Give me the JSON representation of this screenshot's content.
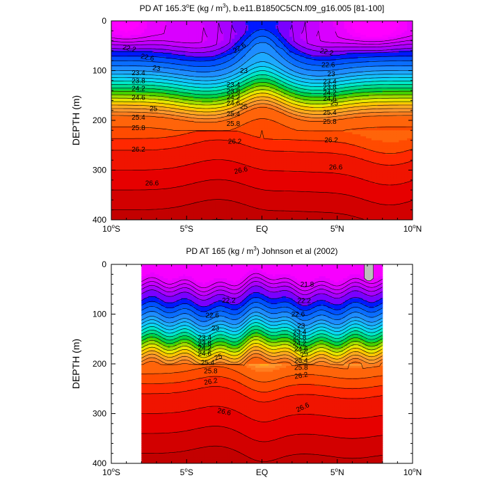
{
  "chart_data": [
    {
      "type": "contour",
      "title": "PD AT 165.3°E (kg / m³), b.e11.B1850C5CN.f09_g16.005 [81-100]",
      "title_parts": {
        "pre": "PD AT 165.3",
        "deg": "o",
        "mid": "E (kg / m",
        "sup": "3",
        "post": "), b.e11.B1850C5CN.f09_g16.005 [81-100]"
      },
      "ylabel": "DEPTH (m)",
      "xlabel": "",
      "xlim": [
        -10,
        10
      ],
      "ylim": [
        400,
        0
      ],
      "xticks": [
        {
          "v": -10,
          "num": "10",
          "deg": "o",
          "dir": "S"
        },
        {
          "v": -5,
          "num": "5",
          "deg": "o",
          "dir": "S"
        },
        {
          "v": 0,
          "num": "EQ",
          "deg": "",
          "dir": ""
        },
        {
          "v": 5,
          "num": "5",
          "deg": "o",
          "dir": "N"
        },
        {
          "v": 10,
          "num": "10",
          "deg": "o",
          "dir": "N"
        }
      ],
      "yticks": [
        0,
        100,
        200,
        300,
        400
      ],
      "data_xrange": [
        -10,
        10
      ],
      "label_values": [
        22.2,
        22.6,
        23,
        23.4,
        23.8,
        24.2,
        24.6,
        25,
        25.4,
        25.8,
        26.2,
        26.6
      ],
      "contour_labels": [
        {
          "v": 22.2,
          "x": -8.8,
          "d": 55,
          "rot": 12
        },
        {
          "v": 22.6,
          "x": -7.6,
          "d": 73,
          "rot": 12
        },
        {
          "v": 23,
          "x": -7.0,
          "d": 95,
          "rot": 10
        },
        {
          "v": 23.4,
          "x": -8.2,
          "d": 104,
          "rot": 0
        },
        {
          "v": 23.8,
          "x": -8.2,
          "d": 120,
          "rot": 0
        },
        {
          "v": 24.2,
          "x": -8.2,
          "d": 136,
          "rot": 0
        },
        {
          "v": 24.6,
          "x": -8.2,
          "d": 154,
          "rot": 0
        },
        {
          "v": 25,
          "x": -7.2,
          "d": 176,
          "rot": 0
        },
        {
          "v": 25.4,
          "x": -8.2,
          "d": 194,
          "rot": 0
        },
        {
          "v": 25.8,
          "x": -8.2,
          "d": 215,
          "rot": 0
        },
        {
          "v": 26.2,
          "x": -8.2,
          "d": 258,
          "rot": 0
        },
        {
          "v": 26.6,
          "x": -7.3,
          "d": 326,
          "rot": 0
        },
        {
          "v": 22.6,
          "x": -1.5,
          "d": 54,
          "rot": -30
        },
        {
          "v": 23,
          "x": -1.2,
          "d": 100,
          "rot": 0
        },
        {
          "v": 23.4,
          "x": -1.9,
          "d": 128,
          "rot": 0
        },
        {
          "v": 23.8,
          "x": -1.9,
          "d": 141,
          "rot": 0
        },
        {
          "v": 24.2,
          "x": -1.9,
          "d": 153,
          "rot": 0
        },
        {
          "v": 24.6,
          "x": -1.9,
          "d": 165,
          "rot": 0
        },
        {
          "v": 25,
          "x": -1.2,
          "d": 172,
          "rot": 0
        },
        {
          "v": 25.4,
          "x": -1.9,
          "d": 187,
          "rot": 0
        },
        {
          "v": 25.8,
          "x": -1.9,
          "d": 206,
          "rot": 0
        },
        {
          "v": 26.2,
          "x": -1.8,
          "d": 242,
          "rot": 0
        },
        {
          "v": 26.6,
          "x": -1.4,
          "d": 300,
          "rot": -12
        },
        {
          "v": 22.2,
          "x": 4.3,
          "d": 62,
          "rot": 12
        },
        {
          "v": 22.6,
          "x": 4.4,
          "d": 88,
          "rot": 0
        },
        {
          "v": 23,
          "x": 4.6,
          "d": 106,
          "rot": 0
        },
        {
          "v": 23.4,
          "x": 4.5,
          "d": 122,
          "rot": 0
        },
        {
          "v": 23.8,
          "x": 4.5,
          "d": 133,
          "rot": 0
        },
        {
          "v": 24.2,
          "x": 4.5,
          "d": 144,
          "rot": 0
        },
        {
          "v": 24.6,
          "x": 4.5,
          "d": 156,
          "rot": 0
        },
        {
          "v": 25,
          "x": 4.8,
          "d": 165,
          "rot": 0
        },
        {
          "v": 25.4,
          "x": 4.5,
          "d": 184,
          "rot": 0
        },
        {
          "v": 25.8,
          "x": 4.5,
          "d": 202,
          "rot": 0
        },
        {
          "v": 26.2,
          "x": 4.6,
          "d": 239,
          "rot": 0
        },
        {
          "v": 26.6,
          "x": 4.9,
          "d": 294,
          "rot": 0
        }
      ]
    },
    {
      "type": "contour",
      "title": "PD AT 165 (kg / m³) Johnson et al (2002)",
      "title_parts": {
        "pre": "PD AT 165 (kg / m",
        "deg": "",
        "mid": "",
        "sup": "3",
        "post": ") Johnson et al (2002)"
      },
      "ylabel": "DEPTH (m)",
      "xlabel": "",
      "xlim": [
        -10,
        10
      ],
      "ylim": [
        400,
        0
      ],
      "xticks": [
        {
          "v": -10,
          "num": "10",
          "deg": "o",
          "dir": "S"
        },
        {
          "v": -5,
          "num": "5",
          "deg": "o",
          "dir": "S"
        },
        {
          "v": 0,
          "num": "EQ",
          "deg": "",
          "dir": ""
        },
        {
          "v": 5,
          "num": "5",
          "deg": "o",
          "dir": "N"
        },
        {
          "v": 10,
          "num": "10",
          "deg": "o",
          "dir": "N"
        }
      ],
      "yticks": [
        0,
        100,
        200,
        300,
        400
      ],
      "data_xrange": [
        -8,
        8
      ],
      "label_values": [
        21.8,
        22.2,
        22.6,
        23,
        23.4,
        23.8,
        24.2,
        24.6,
        25,
        25.4,
        25.8,
        26.2,
        26.6
      ],
      "contour_labels": [
        {
          "v": 21.8,
          "x": 3.0,
          "d": 40,
          "rot": 0
        },
        {
          "v": 22.2,
          "x": -2.2,
          "d": 72,
          "rot": 0
        },
        {
          "v": 22.6,
          "x": -3.3,
          "d": 102,
          "rot": 0
        },
        {
          "v": 23,
          "x": -3.1,
          "d": 128,
          "rot": 0
        },
        {
          "v": 23.4,
          "x": -3.8,
          "d": 147,
          "rot": 0
        },
        {
          "v": 23.8,
          "x": -3.8,
          "d": 158,
          "rot": 0
        },
        {
          "v": 24.2,
          "x": -3.8,
          "d": 168,
          "rot": 0
        },
        {
          "v": 24.6,
          "x": -3.8,
          "d": 179,
          "rot": 0
        },
        {
          "v": 25,
          "x": -2.9,
          "d": 186,
          "rot": -20
        },
        {
          "v": 25.4,
          "x": -3.6,
          "d": 197,
          "rot": 0
        },
        {
          "v": 25.8,
          "x": -3.4,
          "d": 214,
          "rot": 0
        },
        {
          "v": 26.2,
          "x": -3.4,
          "d": 235,
          "rot": -10
        },
        {
          "v": 26.6,
          "x": -2.5,
          "d": 296,
          "rot": 12
        },
        {
          "v": 22.2,
          "x": 2.8,
          "d": 73,
          "rot": 0
        },
        {
          "v": 22.6,
          "x": 2.4,
          "d": 100,
          "rot": 0
        },
        {
          "v": 23,
          "x": 2.6,
          "d": 123,
          "rot": 0
        },
        {
          "v": 23.4,
          "x": 2.5,
          "d": 136,
          "rot": 0
        },
        {
          "v": 23.8,
          "x": 2.5,
          "d": 147,
          "rot": 0
        },
        {
          "v": 24.2,
          "x": 2.5,
          "d": 158,
          "rot": 0
        },
        {
          "v": 24.6,
          "x": 2.6,
          "d": 170,
          "rot": 0
        },
        {
          "v": 25,
          "x": 2.8,
          "d": 180,
          "rot": -20
        },
        {
          "v": 25.4,
          "x": 2.6,
          "d": 193,
          "rot": 0
        },
        {
          "v": 25.8,
          "x": 2.6,
          "d": 207,
          "rot": 0
        },
        {
          "v": 26.2,
          "x": 2.6,
          "d": 223,
          "rot": -10
        },
        {
          "v": 26.6,
          "x": 2.7,
          "d": 287,
          "rot": -25
        }
      ]
    }
  ]
}
